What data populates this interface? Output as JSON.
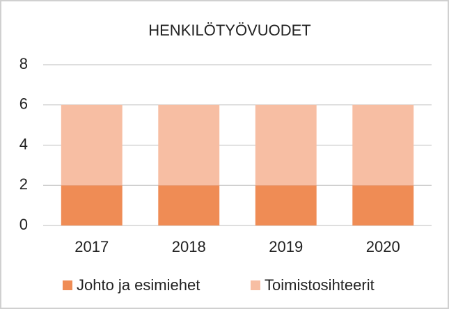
{
  "chart_data": {
    "type": "stacked_bar",
    "title": "HENKILÖTYÖVUODET",
    "categories": [
      "2017",
      "2018",
      "2019",
      "2020"
    ],
    "series": [
      {
        "name": "Johto ja esimiehet",
        "color": "#ef8c55",
        "values": [
          2,
          2,
          2,
          2
        ]
      },
      {
        "name": "Toimistosihteerit",
        "color": "#f7bea3",
        "values": [
          4,
          4,
          4,
          4
        ]
      }
    ],
    "ylim": [
      0,
      8
    ],
    "yticks": [
      0,
      2,
      4,
      6,
      8
    ],
    "grid": true,
    "legend": "bottom"
  }
}
